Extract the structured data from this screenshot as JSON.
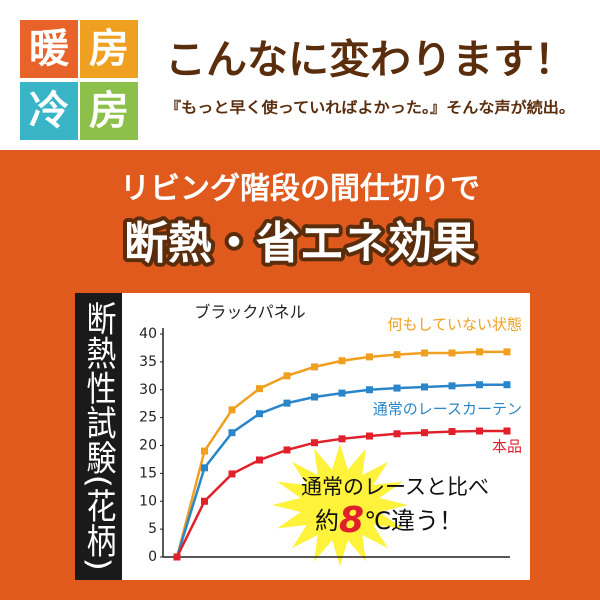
{
  "header": {
    "badges": [
      "暖",
      "房",
      "冷",
      "房"
    ],
    "title": "こんなに変わります！",
    "subtitle": "『もっと早く使っていればよかった。』そんな声が続出。"
  },
  "banner": {
    "line1": "リビング階段の間仕切りで",
    "line2": "断熱・省エネ効果"
  },
  "side_label": "断熱性試験(花柄)",
  "chart_data": {
    "type": "line",
    "title": "ブラックパネル",
    "categories": [
      null,
      null,
      null,
      null,
      null,
      null,
      null,
      null,
      null,
      null,
      null,
      null,
      null
    ],
    "series": [
      {
        "name": "何もしていない状態",
        "color": "#f0a020",
        "values": [
          0,
          19,
          26.4,
          30.2,
          32.5,
          34.1,
          35.2,
          35.9,
          36.3,
          36.6,
          36.6,
          36.8,
          36.8
        ]
      },
      {
        "name": "通常のレースカーテン",
        "color": "#2a86c8",
        "values": [
          0,
          16,
          22.3,
          25.7,
          27.6,
          28.7,
          29.4,
          30,
          30.3,
          30.5,
          30.7,
          30.9,
          30.9
        ]
      },
      {
        "name": "本品",
        "color": "#e0202a",
        "values": [
          0,
          10,
          14.9,
          17.4,
          19.2,
          20.5,
          21.2,
          21.7,
          22.1,
          22.3,
          22.5,
          22.6,
          22.6
        ]
      }
    ],
    "ylim": [
      0,
      40
    ],
    "yticks": [
      0,
      5,
      10,
      15,
      20,
      25,
      30,
      35,
      40
    ],
    "grid": false,
    "annotation": {
      "line1": "通常のレースと比べ",
      "line2a": "約",
      "line2b": "8",
      "line2c": "℃違う！"
    }
  }
}
